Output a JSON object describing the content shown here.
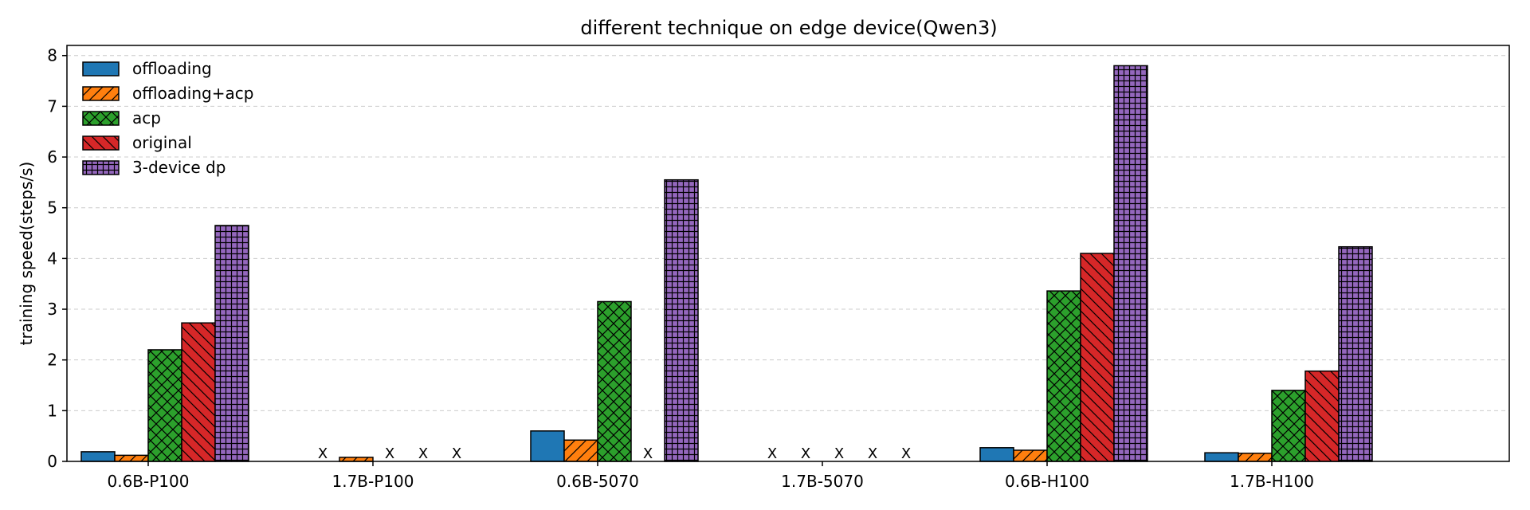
{
  "chart_data": {
    "type": "bar",
    "title": "different technique on edge device(Qwen3)",
    "xlabel": "",
    "ylabel": "training speed(steps/s)",
    "ylim": [
      0,
      8.2
    ],
    "yticks": [
      0,
      1,
      2,
      3,
      4,
      5,
      6,
      7,
      8
    ],
    "grid": "y-dashed",
    "legend_position": "top-left",
    "missing_marker": "X",
    "categories": [
      "0.6B-P100",
      "1.7B-P100",
      "0.6B-5070",
      "1.7B-5070",
      "0.6B-H100",
      "1.7B-H100"
    ],
    "series": [
      {
        "name": "offloading",
        "color": "#1f77b4",
        "hatch": "none",
        "values": [
          0.19,
          null,
          0.6,
          null,
          0.27,
          0.17
        ]
      },
      {
        "name": "offloading+acp",
        "color": "#ff7f0e",
        "hatch": "diagonal",
        "values": [
          0.12,
          0.08,
          0.42,
          null,
          0.22,
          0.16
        ]
      },
      {
        "name": "acp",
        "color": "#2ca02c",
        "hatch": "cross",
        "values": [
          2.2,
          null,
          3.15,
          null,
          3.36,
          1.4
        ]
      },
      {
        "name": "original",
        "color": "#d62728",
        "hatch": "backslash",
        "values": [
          2.73,
          null,
          null,
          null,
          4.1,
          1.78
        ]
      },
      {
        "name": "3-device dp",
        "color": "#9467bd",
        "hatch": "grid",
        "values": [
          4.65,
          null,
          5.55,
          null,
          7.8,
          4.23
        ]
      }
    ]
  }
}
